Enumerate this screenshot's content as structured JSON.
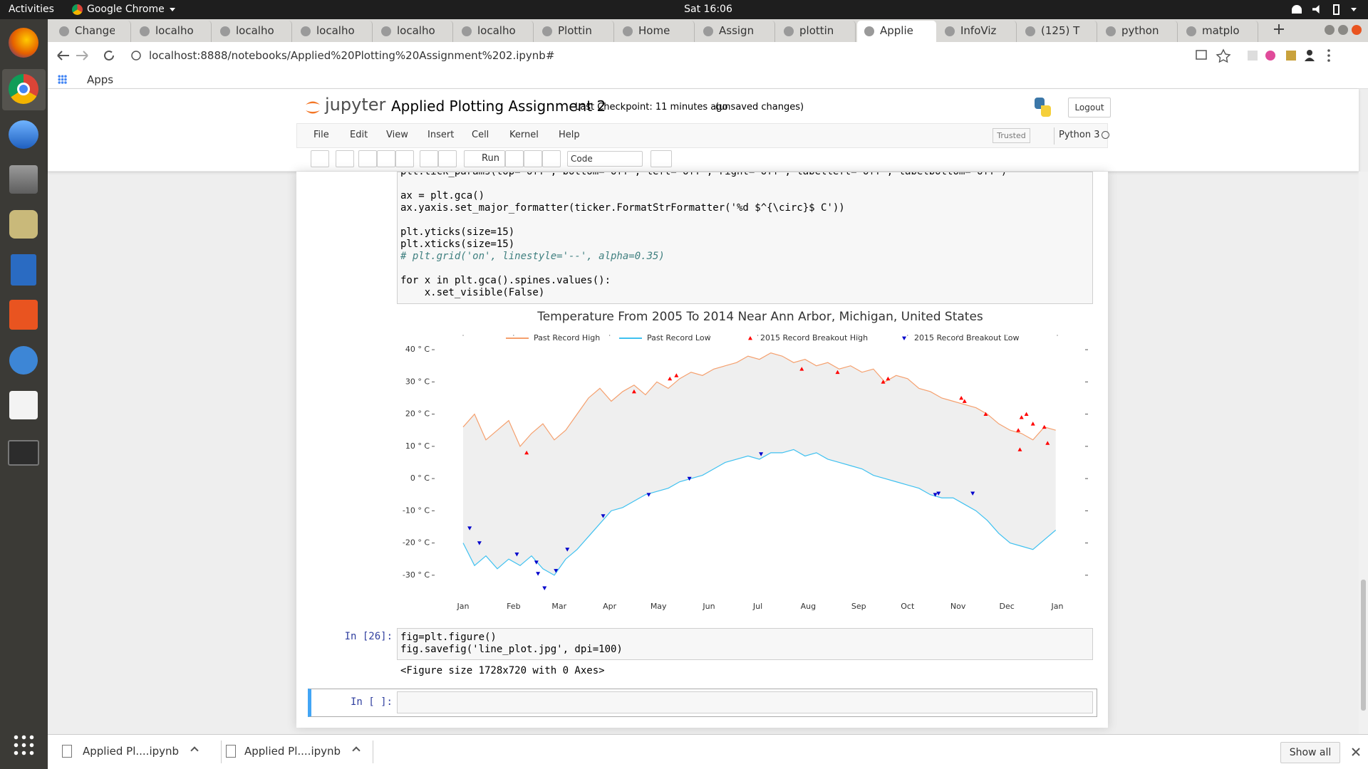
{
  "top_bar": {
    "activities": "Activities",
    "app": "Google Chrome",
    "clock": "Sat 16:06"
  },
  "browser": {
    "tabs": [
      {
        "title": "Change"
      },
      {
        "title": "localho"
      },
      {
        "title": "localho"
      },
      {
        "title": "localho"
      },
      {
        "title": "localho"
      },
      {
        "title": "localho"
      },
      {
        "title": "Plottin"
      },
      {
        "title": "Home"
      },
      {
        "title": "Assign"
      },
      {
        "title": "plottin"
      },
      {
        "title": "Applie",
        "active": true
      },
      {
        "title": "InfoViz"
      },
      {
        "title": "(125) T"
      },
      {
        "title": "python"
      },
      {
        "title": "matplo"
      }
    ],
    "url": "localhost:8888/notebooks/Applied%20Plotting%20Assignment%202.ipynb#",
    "bookmarks": [
      "Apps"
    ]
  },
  "notebook": {
    "logo": "jupyter",
    "title": "Applied Plotting Assignment 2",
    "checkpoint": "Last Checkpoint: 11 minutes ago",
    "status": "(unsaved changes)",
    "logout": "Logout",
    "menu": [
      "File",
      "Edit",
      "View",
      "Insert",
      "Cell",
      "Kernel",
      "Help"
    ],
    "trusted": "Trusted",
    "kernel": "Python 3",
    "toolbar": {
      "run": "Run",
      "cell_type": "Code"
    },
    "cells": [
      {
        "code_blocks": [
          [
            "plt.tick_params(top='off', bottom='off', left='off', right='off', labelleft='off', labelbottom='off')"
          ],
          [
            "ax = plt.gca()",
            "ax.yaxis.set_major_formatter(ticker.FormatStrFormatter('%d $^{\\circ}$ C'))"
          ],
          [
            "plt.yticks(size=15)",
            "plt.xticks(size=15)",
            "# plt.grid('on', linestyle='--', alpha=0.35)"
          ],
          [
            "for x in plt.gca().spines.values():",
            "    x.set_visible(False)"
          ]
        ]
      },
      {
        "prompt": "In [26]:",
        "code_blocks": [
          [
            "fig=plt.figure()",
            "fig.savefig('line_plot.jpg', dpi=100)"
          ]
        ],
        "output": "<Figure size 1728x720 with 0 Axes>"
      },
      {
        "prompt": "In [ ]:"
      }
    ]
  },
  "downloads": {
    "items": [
      "Applied Pl....ipynb",
      "Applied Pl....ipynb"
    ],
    "show_all": "Show all"
  },
  "chart_data": {
    "type": "line",
    "title": "Temperature From 2005 To 2014 Near Ann Arbor, Michigan, United States",
    "x": [
      0,
      7,
      14,
      21,
      28,
      35,
      42,
      49,
      56,
      63,
      70,
      77,
      84,
      91,
      98,
      105,
      112,
      119,
      126,
      133,
      140,
      147,
      154,
      161,
      168,
      175,
      182,
      189,
      196,
      203,
      210,
      217,
      224,
      231,
      238,
      245,
      252,
      259,
      266,
      273,
      280,
      287,
      294,
      301,
      308,
      315,
      322,
      329,
      336,
      343,
      350,
      357,
      364
    ],
    "series": [
      {
        "name": "Past Record High",
        "color": "#f5a06e",
        "values": [
          16,
          20,
          12,
          15,
          18,
          10,
          14,
          17,
          12,
          15,
          20,
          25,
          28,
          24,
          27,
          29,
          26,
          30,
          28,
          31,
          33,
          32,
          34,
          35,
          36,
          38,
          37,
          39,
          38,
          36,
          37,
          35,
          36,
          34,
          35,
          33,
          34,
          30,
          32,
          31,
          28,
          27,
          25,
          24,
          23,
          22,
          20,
          17,
          15,
          14,
          12,
          16,
          15
        ]
      },
      {
        "name": "Past Record Low",
        "color": "#3fc1f0",
        "values": [
          -20,
          -27,
          -24,
          -28,
          -25,
          -27,
          -24,
          -28,
          -30,
          -25,
          -22,
          -18,
          -14,
          -10,
          -9,
          -7,
          -5,
          -4,
          -3,
          -1,
          0,
          1,
          3,
          5,
          6,
          7,
          6,
          8,
          8,
          9,
          7,
          8,
          6,
          5,
          4,
          3,
          1,
          0,
          -1,
          -2,
          -3,
          -5,
          -6,
          -6,
          -8,
          -10,
          -13,
          -17,
          -20,
          -21,
          -22,
          -19,
          -16
        ]
      },
      {
        "name": "2015 Record Breakout High",
        "type": "scatter",
        "marker": "^",
        "color": "#ff0000",
        "x": [
          39,
          105,
          127,
          131,
          208,
          230,
          258,
          261,
          306,
          308,
          321,
          341,
          342,
          343,
          346,
          350,
          357,
          359
        ],
        "values": [
          8,
          27,
          31,
          32,
          34,
          33,
          30,
          31,
          25,
          24,
          20,
          15,
          9,
          19,
          20,
          17,
          16,
          11
        ]
      },
      {
        "name": "2015 Record Breakout Low",
        "type": "scatter",
        "marker": "v",
        "color": "#0000cc",
        "x": [
          4,
          10,
          33,
          45,
          46,
          50,
          57,
          64,
          86,
          114,
          139,
          183,
          290,
          292,
          313
        ],
        "values": [
          -15.4,
          -20,
          -23.5,
          -26,
          -29.5,
          -34,
          -28.6,
          -22,
          -11.6,
          -5,
          0,
          7.6,
          -5,
          -4.6,
          -4.6
        ]
      }
    ],
    "fill_between_color": "#efefef",
    "xlim": [
      0,
      365
    ],
    "xticks": [
      {
        "value": 0,
        "label": "Jan"
      },
      {
        "value": 31,
        "label": "Feb"
      },
      {
        "value": 59,
        "label": "Mar"
      },
      {
        "value": 90,
        "label": "Apr"
      },
      {
        "value": 120,
        "label": "May"
      },
      {
        "value": 151,
        "label": "Jun"
      },
      {
        "value": 181,
        "label": "Jul"
      },
      {
        "value": 212,
        "label": "Aug"
      },
      {
        "value": 243,
        "label": "Sep"
      },
      {
        "value": 273,
        "label": "Oct"
      },
      {
        "value": 304,
        "label": "Nov"
      },
      {
        "value": 334,
        "label": "Dec"
      },
      {
        "value": 365,
        "label": "Jan"
      }
    ],
    "ylim": [
      -36,
      44
    ],
    "yticks": [
      {
        "value": 40,
        "label": "40 ° C"
      },
      {
        "value": 30,
        "label": "30 ° C"
      },
      {
        "value": 20,
        "label": "20 ° C"
      },
      {
        "value": 10,
        "label": "10 ° C"
      },
      {
        "value": 0,
        "label": "0 ° C"
      },
      {
        "value": -10,
        "label": "-10 ° C"
      },
      {
        "value": -20,
        "label": "-20 ° C"
      },
      {
        "value": -30,
        "label": "-30 ° C"
      }
    ],
    "grid": false,
    "legend": "upper center"
  }
}
